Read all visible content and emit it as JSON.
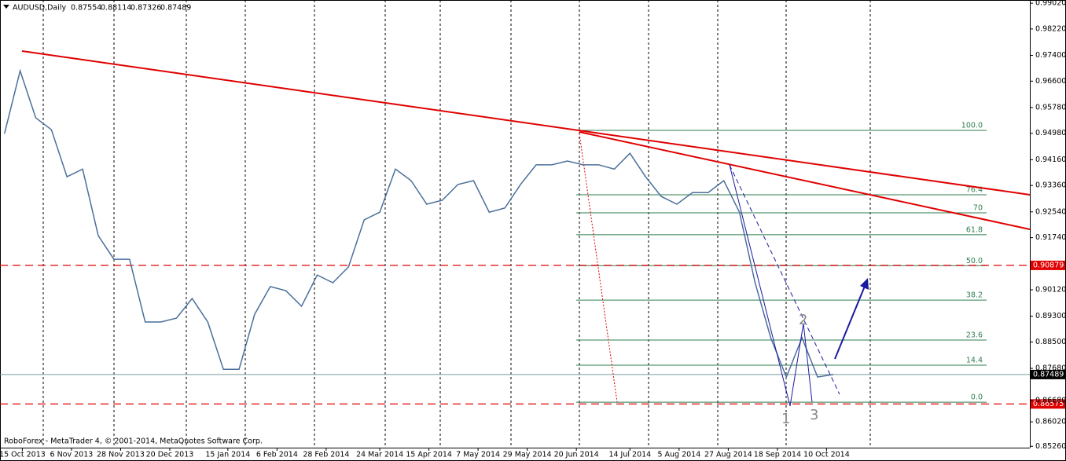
{
  "chart_data": {
    "type": "line",
    "header": {
      "symbol": "AUDUSD,Daily",
      "open": 0.87554,
      "high": 0.88114,
      "low": 0.87326,
      "close": 0.87489
    },
    "footer": "RoboForex - MetaTrader 4, © 2001-2014, MetaQuotes Software Corp.",
    "x": [
      "2013-10-07",
      "2013-10-14",
      "2013-10-21",
      "2013-10-28",
      "2013-11-04",
      "2013-11-11",
      "2013-11-18",
      "2013-11-25",
      "2013-12-02",
      "2013-12-09",
      "2013-12-16",
      "2013-12-23",
      "2013-12-30",
      "2014-01-06",
      "2014-01-13",
      "2014-01-20",
      "2014-01-27",
      "2014-02-03",
      "2014-02-10",
      "2014-02-17",
      "2014-02-24",
      "2014-03-03",
      "2014-03-10",
      "2014-03-17",
      "2014-03-24",
      "2014-03-31",
      "2014-04-07",
      "2014-04-14",
      "2014-04-21",
      "2014-04-28",
      "2014-05-05",
      "2014-05-12",
      "2014-05-19",
      "2014-05-26",
      "2014-06-02",
      "2014-06-09",
      "2014-06-16",
      "2014-06-23",
      "2014-06-30",
      "2014-07-07",
      "2014-07-14",
      "2014-07-21",
      "2014-07-28",
      "2014-08-04",
      "2014-08-11",
      "2014-08-18",
      "2014-08-25",
      "2014-09-01",
      "2014-09-08",
      "2014-09-15",
      "2014-09-22",
      "2014-09-29",
      "2014-10-06",
      "2014-10-13"
    ],
    "series": [
      {
        "name": "AUDUSD",
        "color": "#4a6f9a",
        "values": [
          0.9497,
          0.9692,
          0.9546,
          0.9509,
          0.9363,
          0.9387,
          0.918,
          0.9107,
          0.9107,
          0.8912,
          0.8912,
          0.8924,
          0.8985,
          0.8912,
          0.8765,
          0.8765,
          0.8936,
          0.9022,
          0.9009,
          0.8961,
          0.9058,
          0.9034,
          0.9083,
          0.9229,
          0.9253,
          0.9387,
          0.9351,
          0.9278,
          0.929,
          0.9339,
          0.9351,
          0.9253,
          0.9266,
          0.9339,
          0.94,
          0.94,
          0.9412,
          0.94,
          0.94,
          0.9387,
          0.9436,
          0.9363,
          0.9302,
          0.9278,
          0.9314,
          0.9314,
          0.9351,
          0.9253,
          0.9034,
          0.8863,
          0.8741,
          0.8863,
          0.8741,
          0.87489
        ]
      }
    ],
    "xlim": [
      "2013-10-05",
      "2015-01-09"
    ],
    "xticks": [
      {
        "value": "2013-10-15",
        "label": "15 Oct 2013"
      },
      {
        "value": "2013-11-06",
        "label": "6 Nov 2013"
      },
      {
        "value": "2013-11-28",
        "label": "28 Nov 2013"
      },
      {
        "value": "2013-12-20",
        "label": "20 Dec 2013"
      },
      {
        "value": "2014-01-15",
        "label": "15 Jan 2014"
      },
      {
        "value": "2014-02-06",
        "label": "6 Feb 2014"
      },
      {
        "value": "2014-02-28",
        "label": "28 Feb 2014"
      },
      {
        "value": "2014-03-24",
        "label": "24 Mar 2014"
      },
      {
        "value": "2014-04-15",
        "label": "15 Apr 2014"
      },
      {
        "value": "2014-05-07",
        "label": "7 May 2014"
      },
      {
        "value": "2014-05-29",
        "label": "29 May 2014"
      },
      {
        "value": "2014-06-20",
        "label": "20 Jun 2014"
      },
      {
        "value": "2014-07-14",
        "label": "14 Jul 2014"
      },
      {
        "value": "2014-08-05",
        "label": "5 Aug 2014"
      },
      {
        "value": "2014-08-27",
        "label": "27 Aug 2014"
      },
      {
        "value": "2014-09-18",
        "label": "18 Sep 2014"
      },
      {
        "value": "2014-10-10",
        "label": "10 Oct 2014"
      }
    ],
    "ylim": [
      0.85145,
      0.9912
    ],
    "yticks": [
      {
        "value": 0.9902,
        "label": "0.99020"
      },
      {
        "value": 0.9822,
        "label": "0.98220"
      },
      {
        "value": 0.974,
        "label": "0.97400"
      },
      {
        "value": 0.966,
        "label": "0.96600"
      },
      {
        "value": 0.9578,
        "label": "0.95780"
      },
      {
        "value": 0.9498,
        "label": "0.94980"
      },
      {
        "value": 0.9416,
        "label": "0.94160"
      },
      {
        "value": 0.9336,
        "label": "0.93360"
      },
      {
        "value": 0.9254,
        "label": "0.92540"
      },
      {
        "value": 0.9174,
        "label": "0.91740"
      },
      {
        "value": 0.9012,
        "label": "0.90120"
      },
      {
        "value": 0.893,
        "label": "0.89300"
      },
      {
        "value": 0.885,
        "label": "0.88500"
      },
      {
        "value": 0.8768,
        "label": "0.87680"
      },
      {
        "value": 0.8668,
        "label": "0.86680"
      },
      {
        "value": 0.8602,
        "label": "0.86020"
      },
      {
        "value": 0.8526,
        "label": "0.85260"
      }
    ],
    "price_lines": [
      {
        "value": 0.90879,
        "color": "#e00000",
        "style": "dashed"
      },
      {
        "value": 0.86575,
        "color": "#e00000",
        "style": "dashed"
      },
      {
        "value": 0.87489,
        "color": "#7a9a9a",
        "style": "solid"
      }
    ],
    "fibonacci": [
      {
        "label": "100.0",
        "value": 0.9507
      },
      {
        "label": "76.4",
        "value": 0.9307
      },
      {
        "label": "70",
        "value": 0.9251
      },
      {
        "label": "61.8",
        "value": 0.9183
      },
      {
        "label": "50.0",
        "value": 0.9087
      },
      {
        "label": "38.2",
        "value": 0.898
      },
      {
        "label": "23.6",
        "value": 0.8856
      },
      {
        "label": "14.4",
        "value": 0.8778
      },
      {
        "label": "0.0",
        "value": 0.8663
      }
    ],
    "wave_labels": [
      "1",
      "2",
      "3"
    ]
  }
}
